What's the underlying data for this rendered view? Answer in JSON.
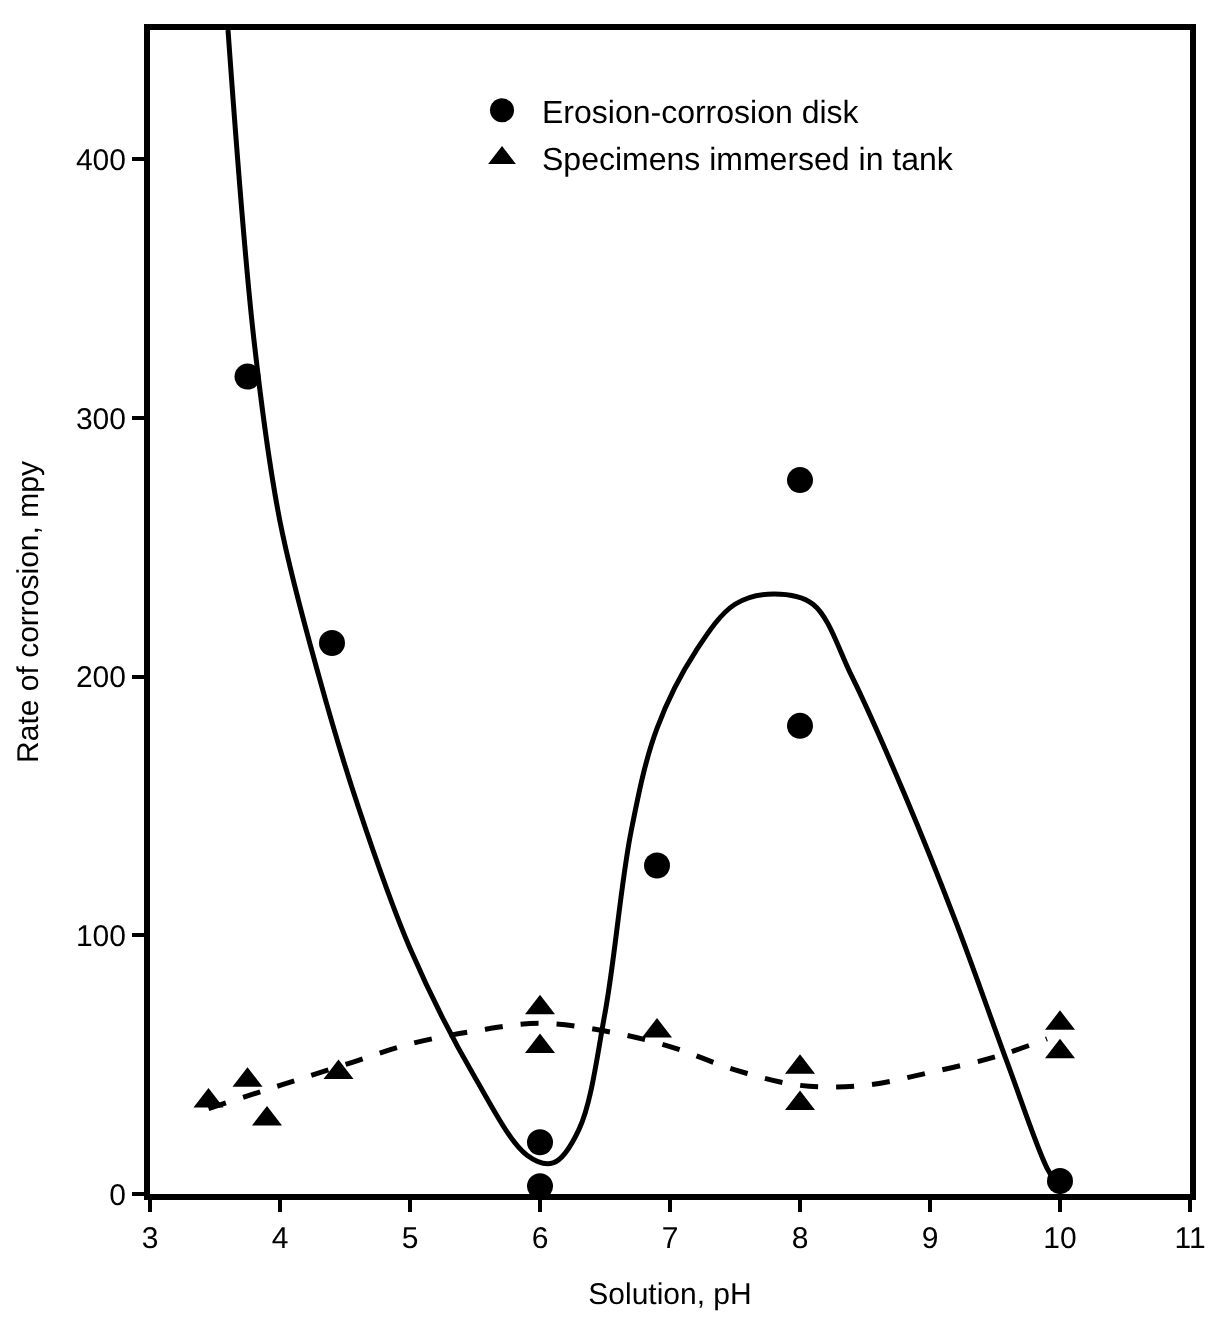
{
  "chart_data": {
    "type": "scatter",
    "xlabel": "Solution, pH",
    "ylabel": "Rate of corrosion, mpy",
    "xlim": [
      3,
      11
    ],
    "ylim": [
      0,
      450
    ],
    "xticks": [
      3,
      4,
      5,
      6,
      7,
      8,
      9,
      10,
      11
    ],
    "yticks": [
      0,
      100,
      200,
      300,
      400
    ],
    "legend": "top",
    "series": [
      {
        "name": "Erosion-corrosion disk",
        "marker": "circle",
        "color": "#000000",
        "x": [
          3.75,
          4.4,
          6,
          6,
          6.9,
          8,
          8,
          10
        ],
        "values": [
          316,
          213,
          20,
          3,
          127,
          276,
          181,
          5
        ]
      },
      {
        "name": "Specimens immersed in tank",
        "marker": "triangle",
        "color": "#000000",
        "x": [
          3.45,
          3.75,
          3.9,
          4.45,
          6,
          6,
          6.9,
          8,
          8,
          10,
          10
        ],
        "values": [
          36,
          44,
          29,
          47,
          72,
          57,
          63,
          49,
          35,
          66,
          55
        ]
      },
      {
        "type": "line",
        "line_style": "solid",
        "color": "#000000",
        "x": [
          3.6,
          3.8,
          4.0,
          4.3,
          4.6,
          5.0,
          5.5,
          5.9,
          6.1,
          6.3,
          6.5,
          6.7,
          6.9,
          7.2,
          7.5,
          7.8,
          8.1,
          8.4,
          8.8,
          9.2,
          9.6,
          9.9,
          10
        ],
        "values": [
          450,
          330,
          260,
          200,
          150,
          95,
          45,
          15,
          12,
          25,
          70,
          140,
          180,
          210,
          228,
          232,
          228,
          200,
          155,
          105,
          50,
          10,
          2
        ]
      },
      {
        "type": "line",
        "line_style": "dashed",
        "color": "#000000",
        "x": [
          3.45,
          4,
          4.5,
          5,
          5.5,
          6,
          6.5,
          7,
          7.5,
          8,
          8.5,
          9,
          9.5,
          9.9
        ],
        "values": [
          33,
          42,
          50,
          58,
          63,
          66,
          63,
          57,
          48,
          42,
          42,
          47,
          53,
          60
        ]
      }
    ]
  }
}
